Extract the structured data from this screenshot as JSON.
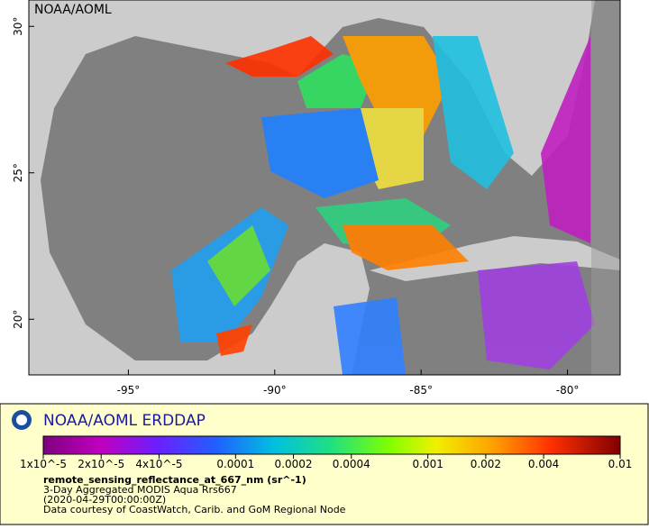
{
  "map": {
    "watermark": "NOAA/AOML",
    "xlim": [
      -98.4,
      -78.2
    ],
    "ylim": [
      18.1,
      30.9
    ],
    "xticks": [
      {
        "value": -95,
        "label": "-95°"
      },
      {
        "value": -90,
        "label": "-90°"
      },
      {
        "value": -85,
        "label": "-85°"
      },
      {
        "value": -80,
        "label": "-80°"
      }
    ],
    "yticks": [
      {
        "value": 20,
        "label": "20°"
      },
      {
        "value": 25,
        "label": "25°"
      },
      {
        "value": 30,
        "label": "30°"
      }
    ]
  },
  "legend": {
    "title": "NOAA/AOML ERDDAP",
    "colorbar": {
      "scale": "log",
      "range": [
        1e-05,
        0.01
      ],
      "ticks": [
        {
          "value": 1e-05,
          "label": "1x10^-5"
        },
        {
          "value": 2e-05,
          "label": "2x10^-5"
        },
        {
          "value": 4e-05,
          "label": "4x10^-5"
        },
        0.0001,
        0.0002,
        0.0004,
        0.001,
        0.002,
        0.004,
        0.01
      ]
    },
    "variable": "remote_sensing_reflectance_at_667_nm (sr^-1)",
    "lines": [
      "3-Day Aggregated MODIS Aqua Rrs667",
      "(2020-04-29T00:00:00Z)",
      "Data courtesy of CoastWatch, Carib. and GoM Regional Node"
    ]
  }
}
